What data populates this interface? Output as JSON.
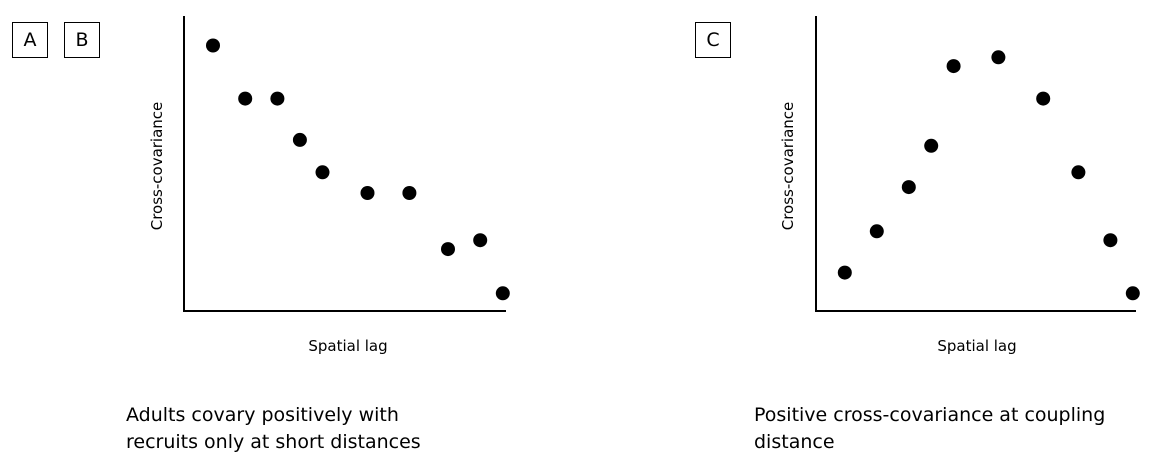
{
  "labels": {
    "a": "A",
    "b": "B",
    "c": "C"
  },
  "captions": {
    "left_line1": "Adults covary positively with",
    "left_line2": "recruits only at short distances",
    "right_line1": "Positive cross-covariance at coupling",
    "right_line2": "distance"
  },
  "chart_data": [
    {
      "type": "scatter",
      "xlabel": "Spatial lag",
      "ylabel": "Cross-covariance",
      "xlim": [
        0,
        10
      ],
      "ylim": [
        0,
        10
      ],
      "points": [
        {
          "x": 0.9,
          "y": 9.0
        },
        {
          "x": 1.9,
          "y": 7.2
        },
        {
          "x": 2.9,
          "y": 7.2
        },
        {
          "x": 3.6,
          "y": 5.8
        },
        {
          "x": 4.3,
          "y": 4.7
        },
        {
          "x": 5.7,
          "y": 4.0
        },
        {
          "x": 7.0,
          "y": 4.0
        },
        {
          "x": 8.2,
          "y": 2.1
        },
        {
          "x": 9.2,
          "y": 2.4
        },
        {
          "x": 9.9,
          "y": 0.6
        }
      ]
    },
    {
      "type": "scatter",
      "xlabel": "Spatial lag",
      "ylabel": "Cross-covariance",
      "xlim": [
        0,
        10
      ],
      "ylim": [
        0,
        10
      ],
      "points": [
        {
          "x": 0.9,
          "y": 1.3
        },
        {
          "x": 1.9,
          "y": 2.7
        },
        {
          "x": 2.9,
          "y": 4.2
        },
        {
          "x": 3.6,
          "y": 5.6
        },
        {
          "x": 4.3,
          "y": 8.3
        },
        {
          "x": 5.7,
          "y": 8.6
        },
        {
          "x": 7.1,
          "y": 7.2
        },
        {
          "x": 8.2,
          "y": 4.7
        },
        {
          "x": 9.2,
          "y": 2.4
        },
        {
          "x": 9.9,
          "y": 0.6
        }
      ]
    }
  ]
}
